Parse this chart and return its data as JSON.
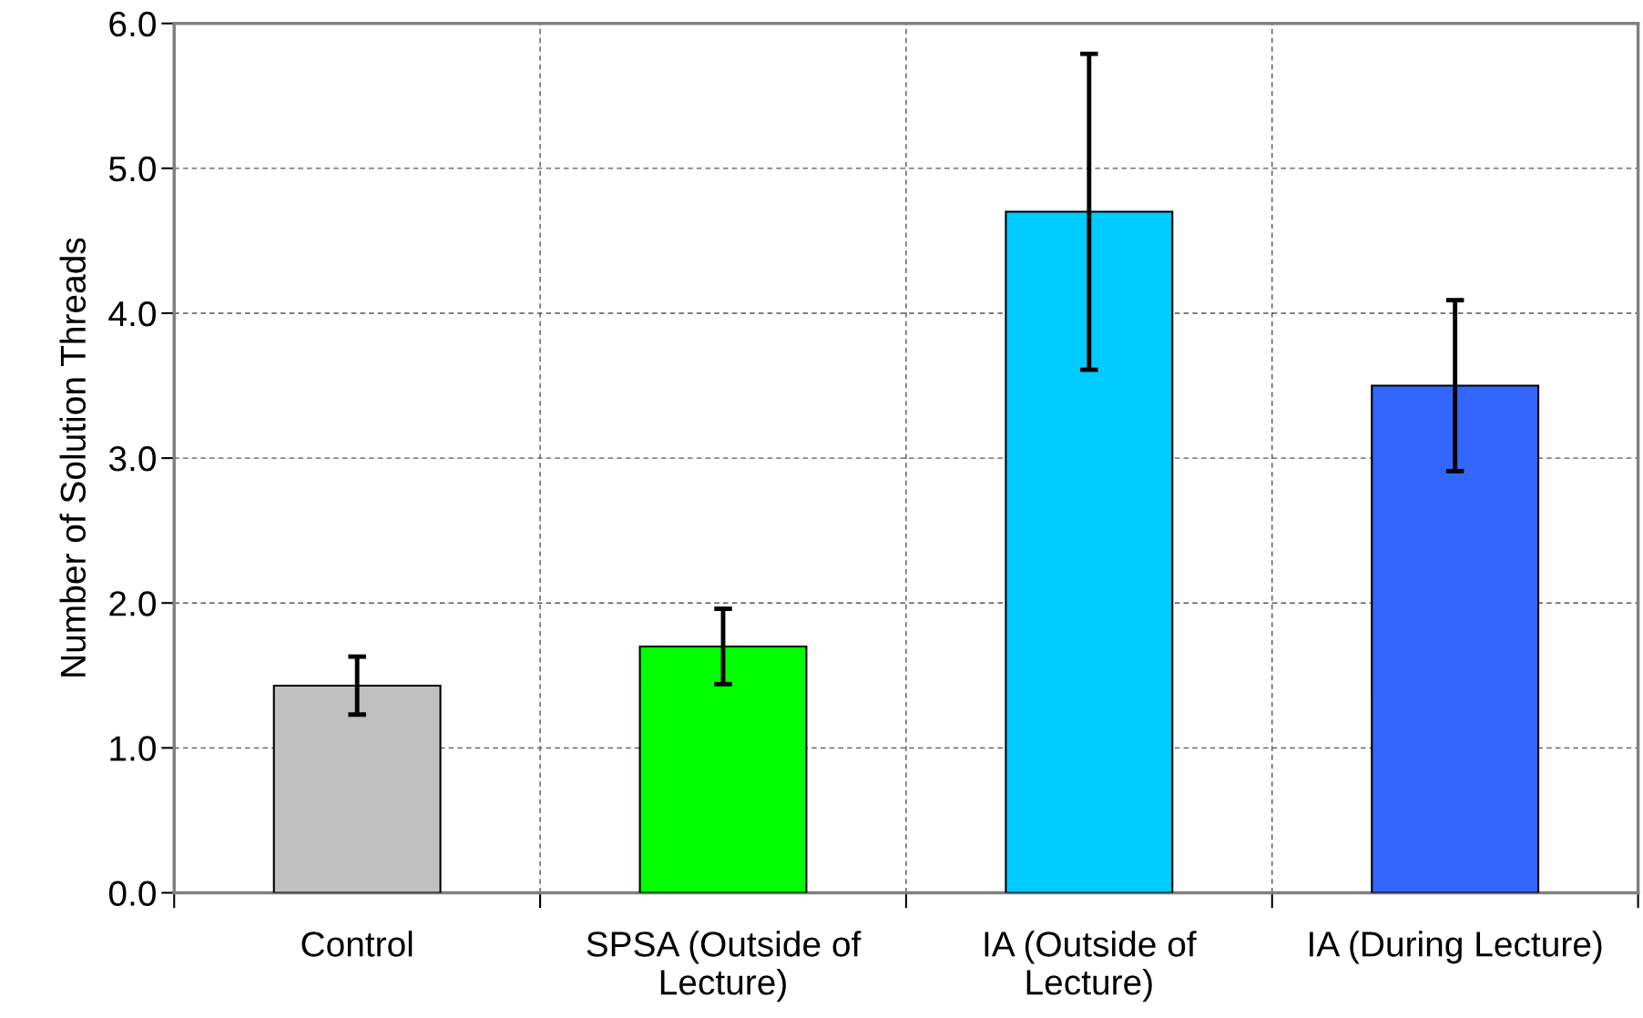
{
  "chart_data": {
    "type": "bar",
    "ylabel": "Number of Solution Threads",
    "categories": [
      "Control",
      "SPSA (Outside of\nLecture)",
      "IA (Outside of\nLecture)",
      "IA (During Lecture)"
    ],
    "values": [
      1.43,
      1.7,
      4.7,
      3.5
    ],
    "errors": [
      0.2,
      0.26,
      1.09,
      0.59
    ],
    "colors": [
      "#c0c0c0",
      "#00ff00",
      "#00ccff",
      "#3366ff"
    ],
    "ylim": [
      0,
      6
    ],
    "yticks": [
      {
        "value": 0,
        "label": "0.0"
      },
      {
        "value": 1,
        "label": "1.0"
      },
      {
        "value": 2,
        "label": "2.0"
      },
      {
        "value": 3,
        "label": "3.0"
      },
      {
        "value": 4,
        "label": "4.0"
      },
      {
        "value": 5,
        "label": "5.0"
      },
      {
        "value": 6,
        "label": "6.0"
      }
    ],
    "grid": true
  }
}
